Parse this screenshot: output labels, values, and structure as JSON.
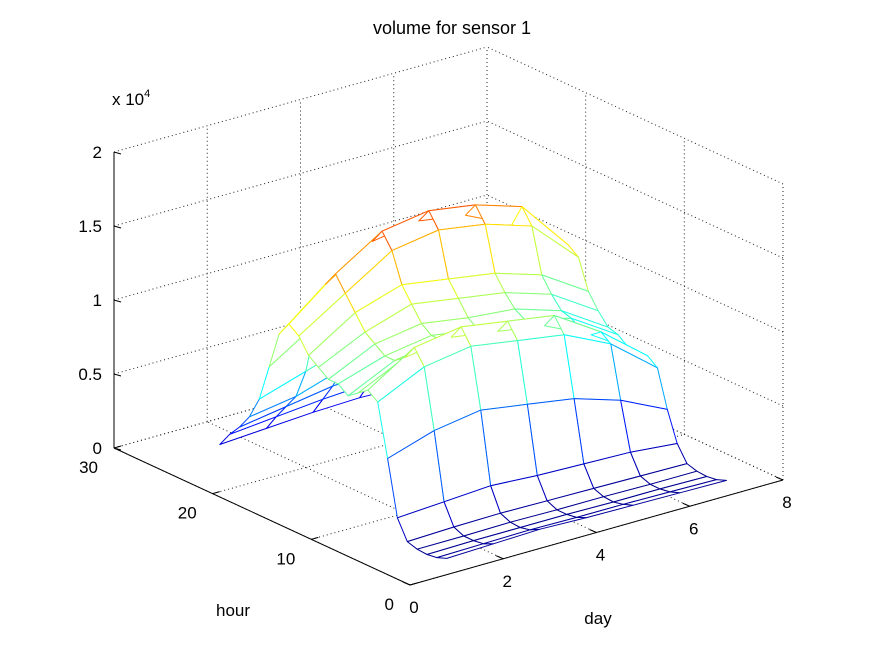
{
  "chart_data": {
    "type": "surface",
    "title": "volume for sensor 1",
    "xlabel": "day",
    "ylabel": "hour",
    "zlabel": "",
    "z_multiplier_label": "x 10",
    "z_multiplier_exponent": "4",
    "xlim": [
      0,
      8
    ],
    "ylim": [
      0,
      30
    ],
    "zlim": [
      0,
      20000
    ],
    "x_ticks": [
      "0",
      "2",
      "4",
      "6",
      "8"
    ],
    "y_ticks": [
      "0",
      "10",
      "20",
      "30"
    ],
    "z_ticks": [
      "0",
      "0.5",
      "1",
      "1.5",
      "2"
    ],
    "grid": true,
    "colormap": "jet",
    "days": [
      1,
      2,
      3,
      4,
      5,
      6,
      7
    ],
    "hours": [
      1,
      2,
      3,
      4,
      5,
      6,
      7,
      8,
      9,
      10,
      11,
      12,
      13,
      14,
      15,
      16,
      17,
      18,
      19,
      20,
      21,
      22,
      23,
      24
    ],
    "volume": [
      [
        600,
        700,
        800,
        700,
        650,
        600,
        550
      ],
      [
        350,
        400,
        450,
        400,
        400,
        350,
        300
      ],
      [
        250,
        300,
        300,
        300,
        250,
        250,
        200
      ],
      [
        300,
        300,
        350,
        300,
        300,
        250,
        250
      ],
      [
        500,
        600,
        650,
        600,
        550,
        500,
        450
      ],
      [
        1800,
        2000,
        2200,
        2000,
        1900,
        1800,
        1500
      ],
      [
        5500,
        6500,
        7000,
        6500,
        6000,
        5000,
        3500
      ],
      [
        9000,
        10500,
        11000,
        10500,
        10000,
        8500,
        6000
      ],
      [
        9500,
        11500,
        12000,
        11500,
        11000,
        9000,
        6500
      ],
      [
        9000,
        10500,
        11000,
        10500,
        10000,
        8500,
        6500
      ],
      [
        8500,
        10000,
        10500,
        10000,
        9500,
        8500,
        6500
      ],
      [
        9000,
        10000,
        10500,
        10000,
        9800,
        9000,
        7000
      ],
      [
        9000,
        10500,
        11000,
        10500,
        10200,
        9200,
        7200
      ],
      [
        9500,
        11000,
        12000,
        11500,
        11000,
        10000,
        8000
      ],
      [
        10000,
        12000,
        13000,
        12500,
        12000,
        11000,
        9000
      ],
      [
        11000,
        13000,
        15000,
        15500,
        15000,
        14000,
        11000
      ],
      [
        11500,
        14000,
        16000,
        16500,
        16000,
        15000,
        11500
      ],
      [
        10500,
        13000,
        15000,
        15500,
        15000,
        13500,
        10000
      ],
      [
        8000,
        10000,
        11500,
        12000,
        11500,
        10000,
        7500
      ],
      [
        5500,
        6500,
        7500,
        8000,
        7500,
        6500,
        5000
      ],
      [
        4000,
        4500,
        5500,
        5800,
        5500,
        4800,
        3800
      ],
      [
        3000,
        3500,
        4000,
        4200,
        4000,
        3500,
        2800
      ],
      [
        2200,
        2500,
        2800,
        3000,
        2800,
        2400,
        2000
      ],
      [
        1200,
        1400,
        1600,
        1700,
        1600,
        1300,
        1000
      ]
    ]
  }
}
